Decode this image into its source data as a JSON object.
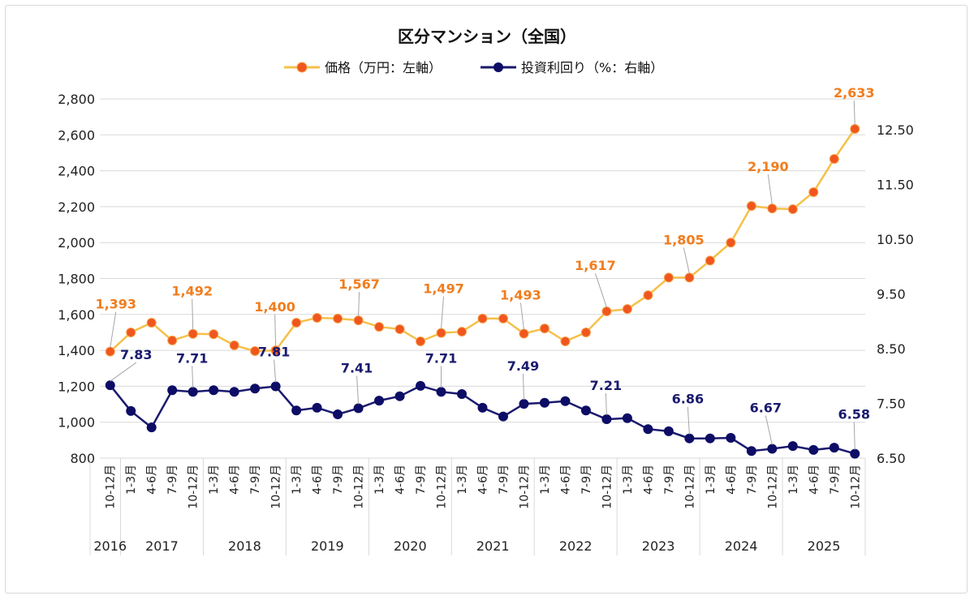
{
  "chart_data": {
    "type": "line",
    "title": "区分マンション（全国）",
    "legend_position": "top",
    "grid": true,
    "categories": [
      "10-12月",
      "1-3月",
      "4-6月",
      "7-9月",
      "10-12月",
      "1-3月",
      "4-6月",
      "7-9月",
      "10-12月",
      "1-3月",
      "4-6月",
      "7-9月",
      "10-12月",
      "1-3月",
      "4-6月",
      "7-9月",
      "10-12月",
      "1-3月",
      "4-6月",
      "7-9月",
      "10-12月",
      "1-3月",
      "4-6月",
      "7-9月",
      "10-12月",
      "1-3月",
      "4-6月",
      "7-9月",
      "10-12月",
      "1-3月",
      "4-6月",
      "7-9月",
      "10-12月",
      "1-3月",
      "4-6月",
      "7-9月",
      "10-12月"
    ],
    "year_groups": [
      {
        "label": "2016",
        "count": 1
      },
      {
        "label": "2017",
        "count": 4
      },
      {
        "label": "2018",
        "count": 4
      },
      {
        "label": "2019",
        "count": 4
      },
      {
        "label": "2020",
        "count": 4
      },
      {
        "label": "2021",
        "count": 4
      },
      {
        "label": "2022",
        "count": 4
      },
      {
        "label": "2023",
        "count": 4
      },
      {
        "label": "2024",
        "count": 4
      },
      {
        "label": "2025",
        "count": 4
      }
    ],
    "left_axis": {
      "min": 800,
      "max": 2800,
      "step": 200,
      "ticks": [
        "800",
        "1,000",
        "1,200",
        "1,400",
        "1,600",
        "1,800",
        "2,000",
        "2,200",
        "2,400",
        "2,600",
        "2,800"
      ]
    },
    "right_axis": {
      "min": 6.5,
      "max": 13.06,
      "ticks": [
        "6.50",
        "7.50",
        "8.50",
        "9.50",
        "10.50",
        "11.50",
        "12.50"
      ],
      "tick_values": [
        6.5,
        7.5,
        8.5,
        9.5,
        10.5,
        11.5,
        12.5
      ]
    },
    "series": [
      {
        "name": "価格（万円：左軸）",
        "axis": "left",
        "color": "#f5c04a",
        "marker_color": "#f0561e",
        "values": [
          1393,
          1500,
          1554,
          1455,
          1492,
          1490,
          1428,
          1396,
          1400,
          1554,
          1581,
          1577,
          1567,
          1531,
          1518,
          1450,
          1497,
          1504,
          1577,
          1577,
          1493,
          1522,
          1450,
          1500,
          1617,
          1630,
          1707,
          1805,
          1805,
          1900,
          2000,
          2204,
          2190,
          2186,
          2281,
          2466,
          2633
        ],
        "data_labels": [
          {
            "index": 0,
            "text": "1,393"
          },
          {
            "index": 4,
            "text": "1,492"
          },
          {
            "index": 8,
            "text": "1,400"
          },
          {
            "index": 12,
            "text": "1,567"
          },
          {
            "index": 16,
            "text": "1,497"
          },
          {
            "index": 20,
            "text": "1,493"
          },
          {
            "index": 24,
            "text": "1,617"
          },
          {
            "index": 28,
            "text": "1,805"
          },
          {
            "index": 32,
            "text": "2,190"
          },
          {
            "index": 36,
            "text": "2,633"
          }
        ]
      },
      {
        "name": "投資利回り（%：右軸）",
        "axis": "right",
        "color": "#1a1a6e",
        "marker_color": "#0d0d66",
        "values": [
          7.83,
          7.36,
          7.06,
          7.74,
          7.71,
          7.74,
          7.71,
          7.77,
          7.81,
          7.37,
          7.42,
          7.3,
          7.41,
          7.55,
          7.63,
          7.82,
          7.71,
          7.67,
          7.42,
          7.26,
          7.49,
          7.51,
          7.54,
          7.37,
          7.21,
          7.23,
          7.03,
          6.99,
          6.86,
          6.86,
          6.87,
          6.63,
          6.67,
          6.72,
          6.65,
          6.69,
          6.58
        ],
        "data_labels": [
          {
            "index": 0,
            "text": "7.83"
          },
          {
            "index": 4,
            "text": "7.71"
          },
          {
            "index": 8,
            "text": "7.81"
          },
          {
            "index": 12,
            "text": "7.41"
          },
          {
            "index": 16,
            "text": "7.71"
          },
          {
            "index": 20,
            "text": "7.49"
          },
          {
            "index": 24,
            "text": "7.21"
          },
          {
            "index": 28,
            "text": "6.86"
          },
          {
            "index": 32,
            "text": "6.67"
          },
          {
            "index": 36,
            "text": "6.58"
          }
        ]
      }
    ]
  }
}
